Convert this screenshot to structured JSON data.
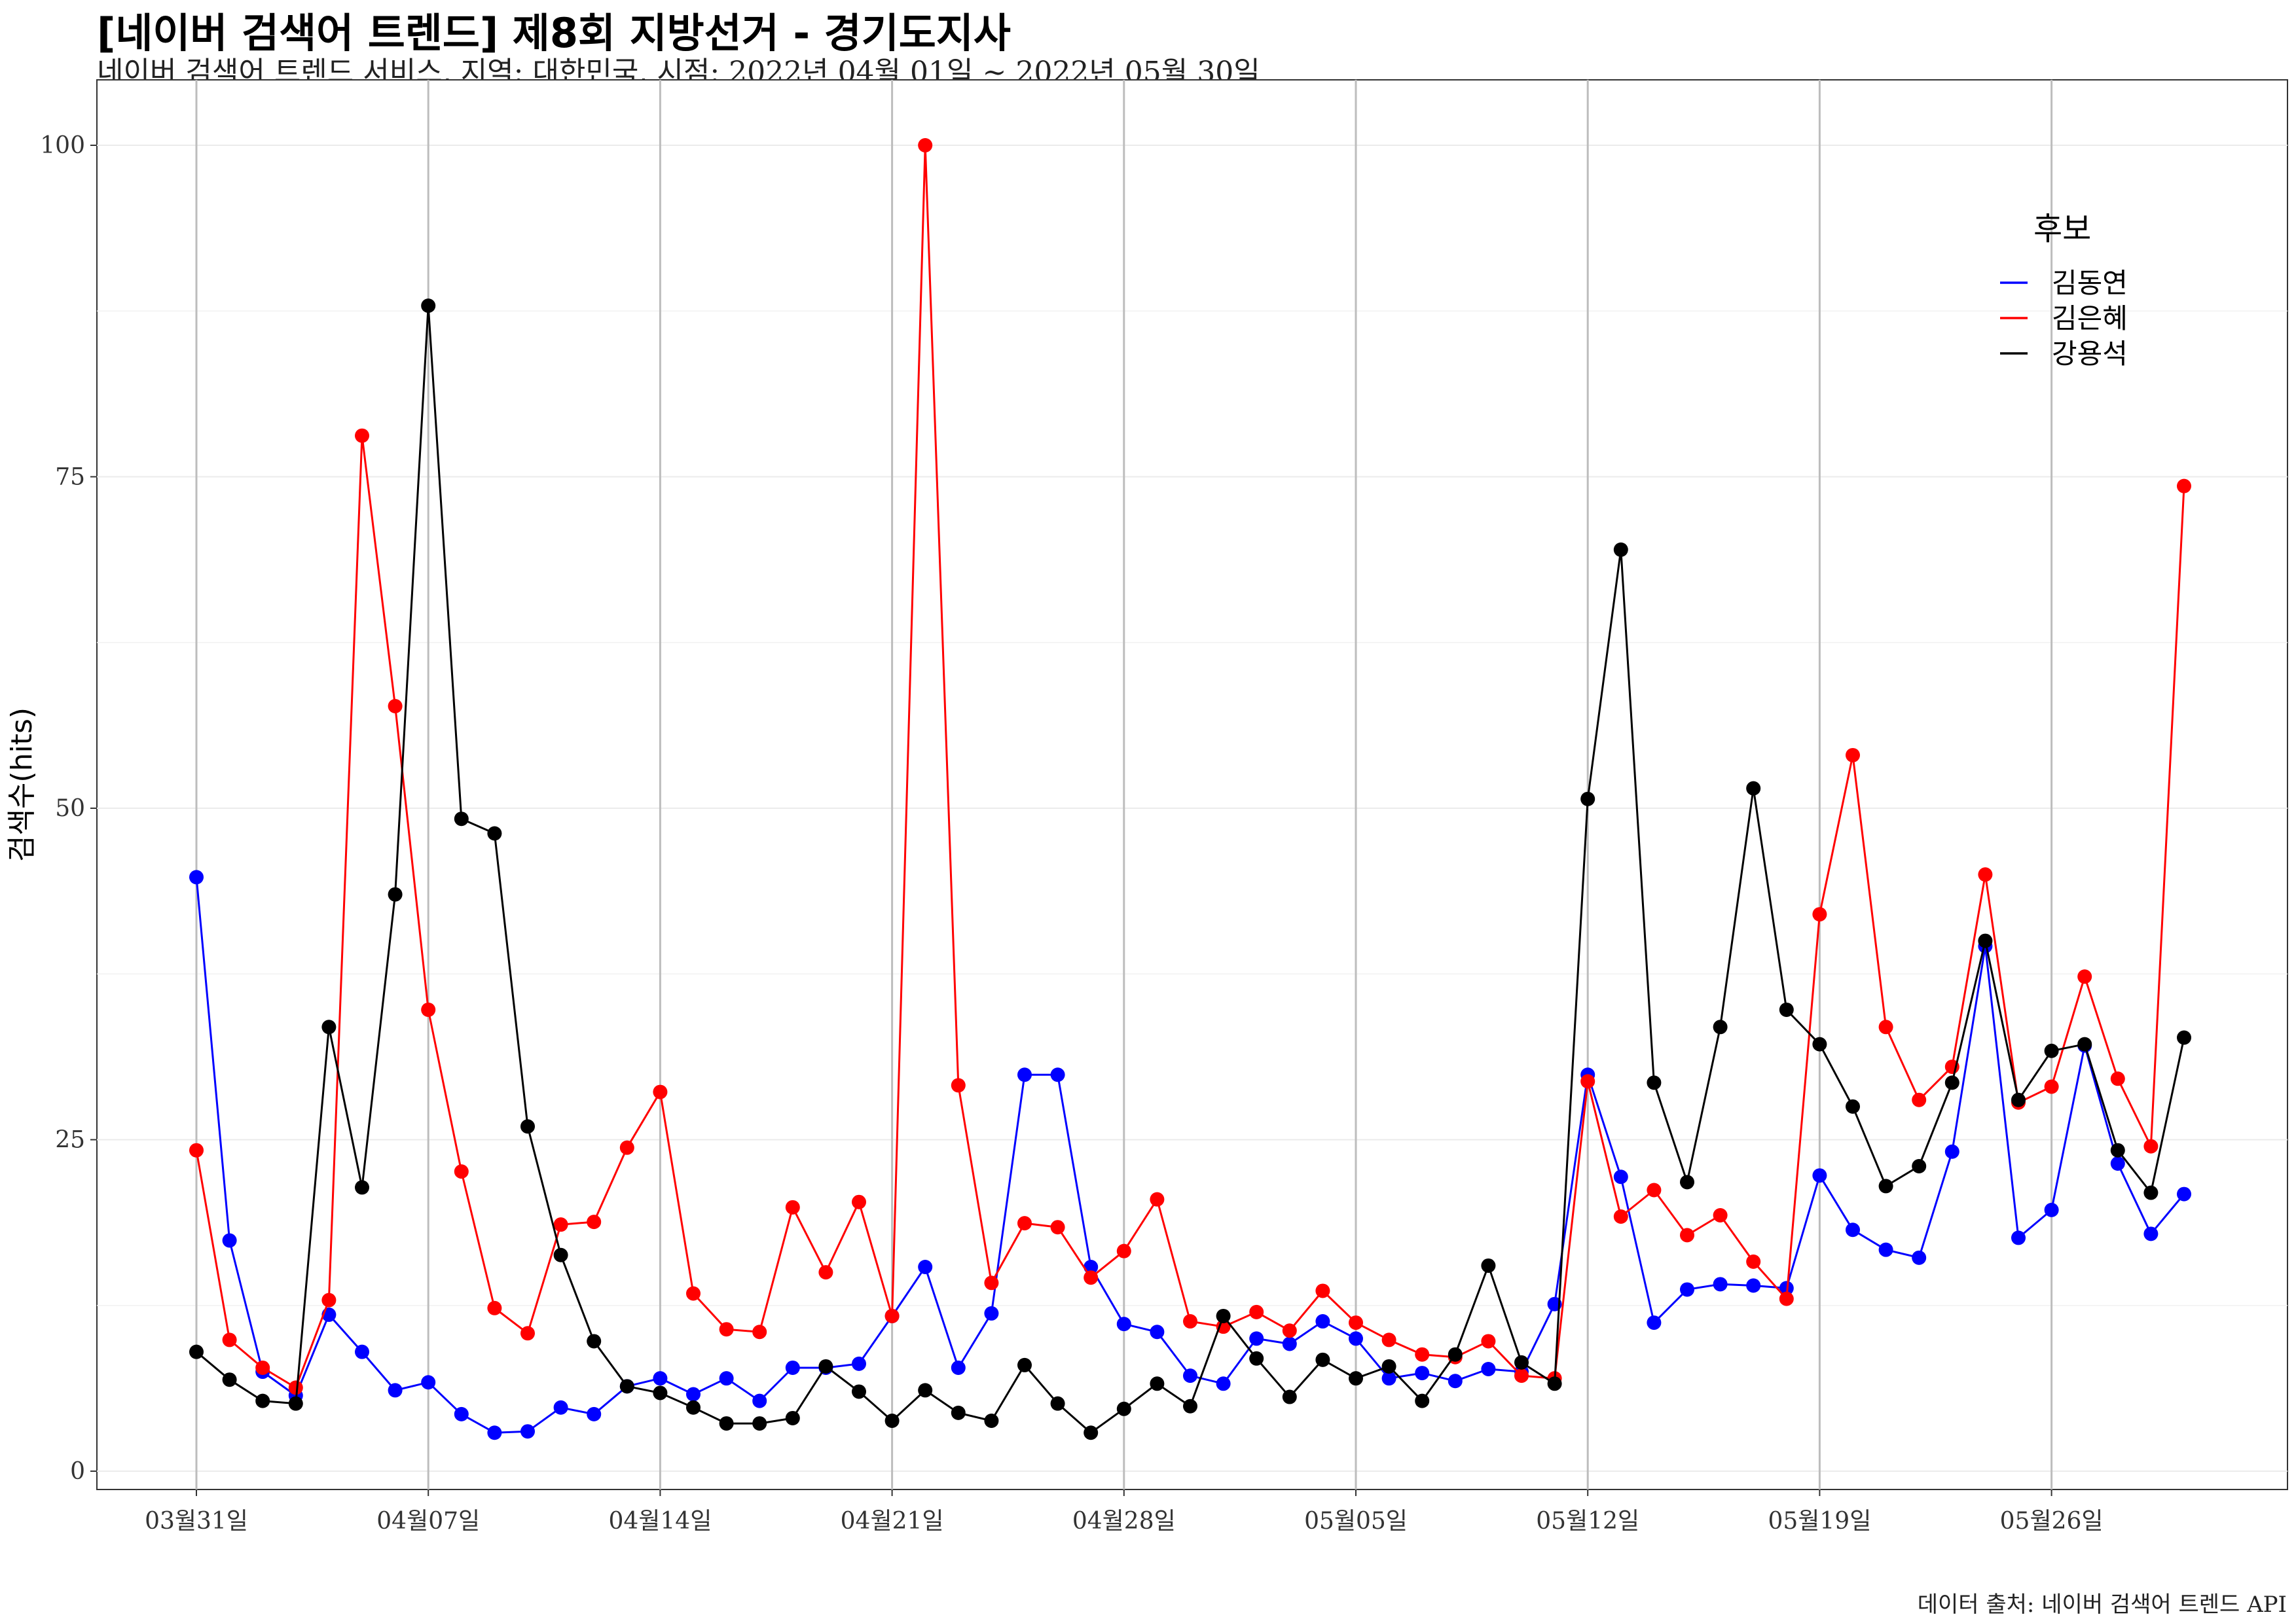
{
  "header": {
    "title": "[네이버 검색어 트렌드] 제8회 지방선거 - 경기도지사",
    "subtitle": "네이버 검색어 트렌드 서비스, 지역: 대한민국, 시점: 2022년 04월 01일 ~ 2022년 05월 30일"
  },
  "caption": "데이터 출처: 네이버 검색어 트렌드 API",
  "chart_data": {
    "type": "line",
    "xlabel": "",
    "ylabel": "검색수(hits)",
    "ylim": [
      -1.5,
      105
    ],
    "yticks": [
      0,
      25,
      50,
      75,
      100
    ],
    "x_start": "2022-03-31",
    "x_ticks": [
      {
        "label": "03월31일",
        "date": "2022-03-31"
      },
      {
        "label": "04월07일",
        "date": "2022-04-07"
      },
      {
        "label": "04월14일",
        "date": "2022-04-14"
      },
      {
        "label": "04월21일",
        "date": "2022-04-21"
      },
      {
        "label": "04월28일",
        "date": "2022-04-28"
      },
      {
        "label": "05월05일",
        "date": "2022-05-05"
      },
      {
        "label": "05월12일",
        "date": "2022-05-12"
      },
      {
        "label": "05월19일",
        "date": "2022-05-19"
      },
      {
        "label": "05월26일",
        "date": "2022-05-26"
      }
    ],
    "grid": true,
    "legend": {
      "title": "후보",
      "position": "top-right"
    },
    "series": [
      {
        "name": "김동연",
        "color": "#0000FF",
        "values": [
          44.8,
          17.4,
          7.5,
          5.7,
          11.8,
          9.0,
          6.1,
          6.7,
          4.3,
          2.9,
          3.0,
          4.8,
          4.3,
          6.4,
          7.0,
          5.8,
          7.0,
          5.3,
          7.8,
          7.8,
          8.1,
          11.7,
          15.4,
          7.8,
          11.9,
          29.9,
          29.9,
          15.4,
          11.1,
          10.5,
          7.2,
          6.6,
          10.0,
          9.6,
          11.3,
          10.0,
          7.0,
          7.4,
          6.8,
          7.7,
          7.5,
          12.6,
          29.9,
          22.2,
          11.2,
          13.7,
          14.1,
          14.0,
          13.8,
          22.3,
          18.2,
          16.7,
          16.1,
          24.1,
          39.6,
          17.6,
          19.7,
          32.1,
          23.2,
          17.9,
          20.9
        ]
      },
      {
        "name": "김은혜",
        "color": "#FF0000",
        "values": [
          24.2,
          9.9,
          7.8,
          6.3,
          12.9,
          78.1,
          57.7,
          34.8,
          22.6,
          12.3,
          10.4,
          18.6,
          18.8,
          24.4,
          28.6,
          13.4,
          10.7,
          10.5,
          19.9,
          15.0,
          20.3,
          11.7,
          100.0,
          29.1,
          14.2,
          18.7,
          18.4,
          14.6,
          16.6,
          20.5,
          11.3,
          10.9,
          12.0,
          10.6,
          13.6,
          11.2,
          9.9,
          8.8,
          8.6,
          9.8,
          7.2,
          7.0,
          29.4,
          19.2,
          21.2,
          17.8,
          19.3,
          15.8,
          13.0,
          42.0,
          54.0,
          33.5,
          28.0,
          30.5,
          45.0,
          27.8,
          29.0,
          37.3,
          29.6,
          24.5,
          74.3
        ]
      },
      {
        "name": "강용석",
        "color": "#000000",
        "values": [
          9.0,
          6.9,
          5.3,
          5.1,
          33.5,
          21.4,
          43.5,
          87.9,
          49.2,
          48.1,
          26.0,
          16.3,
          9.8,
          6.4,
          5.9,
          4.8,
          3.6,
          3.6,
          4.0,
          7.9,
          6.0,
          3.8,
          6.1,
          4.4,
          3.8,
          8.0,
          5.1,
          2.9,
          4.7,
          6.6,
          4.9,
          11.7,
          8.5,
          5.6,
          8.4,
          7.0,
          7.9,
          5.3,
          8.8,
          15.5,
          8.2,
          6.6,
          50.7,
          69.5,
          29.3,
          21.8,
          33.5,
          51.5,
          34.8,
          32.2,
          27.5,
          21.5,
          23.0,
          29.3,
          40.0,
          28.0,
          31.7,
          32.2,
          24.2,
          21.0,
          32.7
        ]
      }
    ]
  }
}
